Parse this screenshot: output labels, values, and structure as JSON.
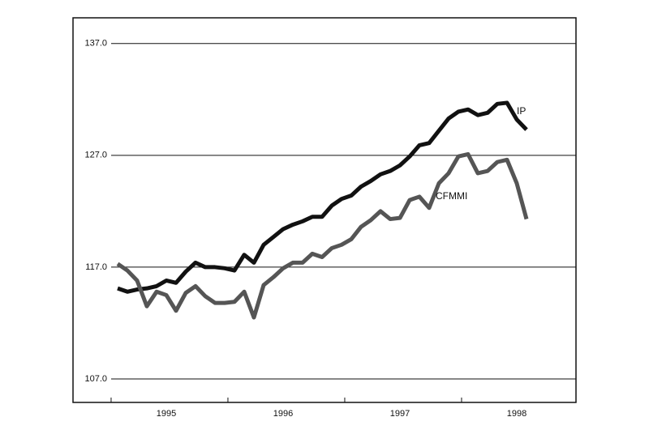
{
  "chart_data": {
    "type": "line",
    "categories": [
      null,
      null,
      null,
      null,
      null,
      "1995",
      null,
      null,
      null,
      null,
      null,
      null,
      null,
      null,
      null,
      null,
      null,
      "1996",
      null,
      null,
      null,
      null,
      null,
      null,
      null,
      null,
      null,
      null,
      null,
      "1997",
      null,
      null,
      null,
      null,
      null,
      null,
      null,
      null,
      null,
      null,
      null,
      "1998",
      null
    ],
    "series": [
      {
        "name": "IP",
        "color": "#111111",
        "values": [
          115.1,
          114.8,
          115.0,
          115.1,
          115.3,
          115.8,
          115.6,
          116.6,
          117.4,
          117.0,
          117.0,
          116.9,
          116.7,
          118.1,
          117.4,
          119.0,
          119.7,
          120.4,
          120.8,
          121.1,
          121.5,
          121.5,
          122.5,
          123.1,
          123.4,
          124.2,
          124.7,
          125.3,
          125.6,
          126.1,
          126.9,
          127.9,
          128.1,
          129.2,
          130.3,
          130.9,
          131.1,
          130.6,
          130.8,
          131.6,
          131.7,
          130.2,
          129.3
        ]
      },
      {
        "name": "CFMMI",
        "color": "#555555",
        "values": [
          117.3,
          116.7,
          115.8,
          113.5,
          114.8,
          114.5,
          113.1,
          114.7,
          115.3,
          114.4,
          113.8,
          113.8,
          113.9,
          114.8,
          112.5,
          115.4,
          116.1,
          116.9,
          117.4,
          117.4,
          118.2,
          117.9,
          118.7,
          119.0,
          119.5,
          120.6,
          121.2,
          122.0,
          121.3,
          121.4,
          123.0,
          123.3,
          122.3,
          124.5,
          125.4,
          126.9,
          127.1,
          125.4,
          125.6,
          126.4,
          126.6,
          124.5,
          121.3
        ]
      }
    ],
    "ylim": [
      104.9,
      139.3
    ],
    "yticks": [
      {
        "value": 107,
        "label": "107.0"
      },
      {
        "value": 117,
        "label": "117.0"
      },
      {
        "value": 127,
        "label": "127.0"
      },
      {
        "value": 137,
        "label": "137.0"
      }
    ],
    "grid": true
  }
}
